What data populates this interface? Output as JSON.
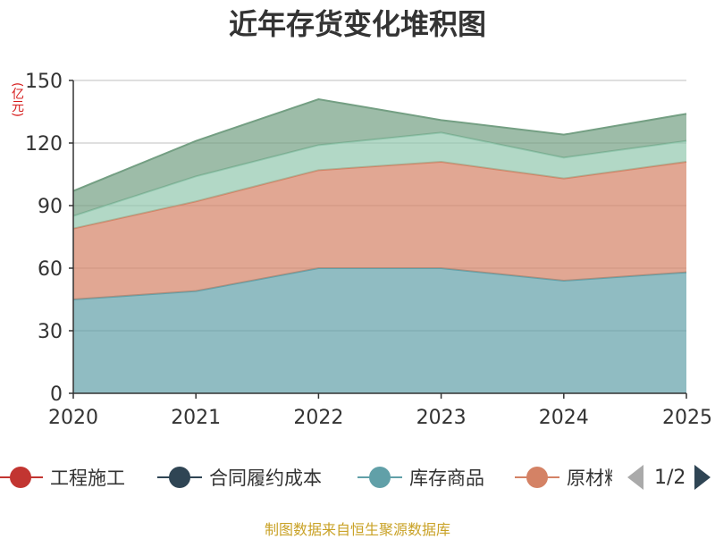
{
  "chart_data": {
    "type": "area",
    "stacked": true,
    "title": "近年存货变化堆积图",
    "ylabel": "(亿元)",
    "x": [
      "2020",
      "2021",
      "2022",
      "2023",
      "2024",
      "2025"
    ],
    "ylim": [
      0,
      150
    ],
    "yticks": [
      0,
      30,
      60,
      90,
      120,
      150
    ],
    "grid": true,
    "legend_position": "bottom",
    "series": [
      {
        "name": "库存商品",
        "values": [
          45,
          49,
          60,
          60,
          54,
          58
        ],
        "color": "#61a0a8"
      },
      {
        "name": "原材料",
        "values": [
          34,
          43,
          47,
          51,
          49,
          53
        ],
        "color": "#d48265"
      },
      {
        "name": "",
        "values": [
          6,
          12,
          12,
          14,
          10,
          10
        ],
        "color": "#91c7ae"
      },
      {
        "name": "",
        "values": [
          12,
          17,
          22,
          6,
          11,
          13
        ],
        "color": "#749f83"
      }
    ]
  },
  "legend": {
    "items": [
      {
        "label": "工程施工",
        "color": "#c23531"
      },
      {
        "label": "合同履约成本",
        "color": "#2f4554"
      },
      {
        "label": "库存商品",
        "color": "#61a0a8"
      },
      {
        "label": "原材料",
        "color": "#d48265"
      }
    ],
    "page_text": "1/2",
    "prev_color": "#aaaaaa",
    "next_color": "#2f4554"
  },
  "source_note": "制图数据来自恒生聚源数据库"
}
